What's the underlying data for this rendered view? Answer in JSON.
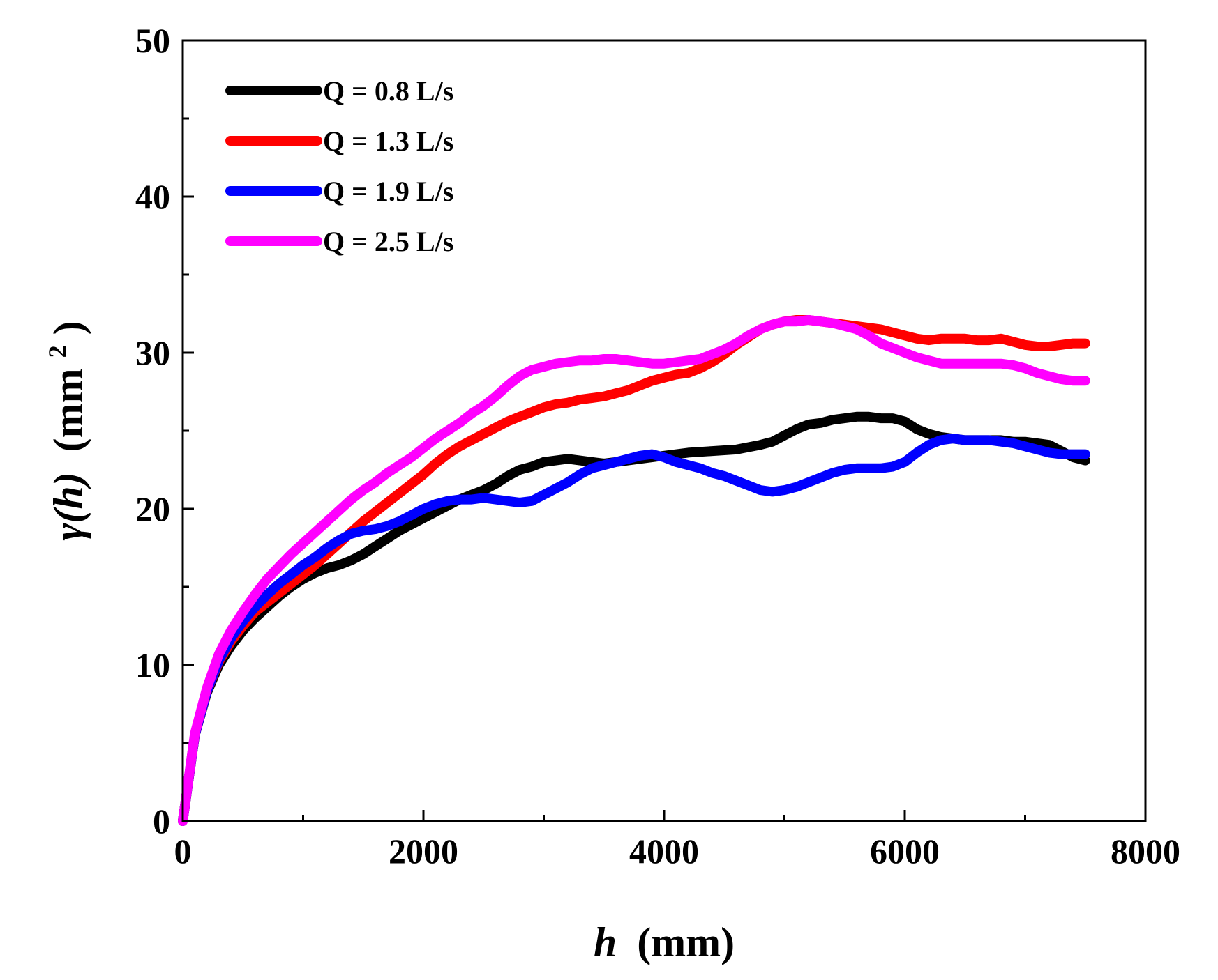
{
  "chart_data": {
    "type": "line",
    "title": "",
    "xlabel": "h",
    "xlabel_unit": "(mm)",
    "ylabel": "γ(h)",
    "ylabel_unit": "(mm",
    "ylabel_sup": "2",
    "ylabel_close": ")",
    "xlim": [
      0,
      8000
    ],
    "ylim": [
      0,
      50
    ],
    "x_ticks": [
      0,
      2000,
      4000,
      6000,
      8000
    ],
    "x_tick_labels": [
      "0",
      "2000",
      "4000",
      "6000",
      "8000"
    ],
    "y_ticks": [
      0,
      10,
      20,
      30,
      40,
      50
    ],
    "y_tick_labels": [
      "0",
      "10",
      "20",
      "30",
      "40",
      "50"
    ],
    "grid": false,
    "legend_position": "top-left",
    "series": [
      {
        "name": "Q = 0.8 L/s",
        "color": "#000000",
        "points": [
          [
            0,
            0
          ],
          [
            100,
            5.5
          ],
          [
            200,
            8.2
          ],
          [
            300,
            10
          ],
          [
            400,
            11.2
          ],
          [
            500,
            12.2
          ],
          [
            600,
            13
          ],
          [
            700,
            13.7
          ],
          [
            800,
            14.4
          ],
          [
            900,
            15
          ],
          [
            1000,
            15.5
          ],
          [
            1100,
            15.9
          ],
          [
            1200,
            16.2
          ],
          [
            1300,
            16.4
          ],
          [
            1400,
            16.7
          ],
          [
            1500,
            17.1
          ],
          [
            1600,
            17.6
          ],
          [
            1700,
            18.1
          ],
          [
            1800,
            18.6
          ],
          [
            1900,
            19
          ],
          [
            2000,
            19.4
          ],
          [
            2100,
            19.8
          ],
          [
            2200,
            20.2
          ],
          [
            2300,
            20.6
          ],
          [
            2400,
            20.9
          ],
          [
            2500,
            21.2
          ],
          [
            2600,
            21.6
          ],
          [
            2700,
            22.1
          ],
          [
            2800,
            22.5
          ],
          [
            2900,
            22.7
          ],
          [
            3000,
            23
          ],
          [
            3100,
            23.1
          ],
          [
            3200,
            23.2
          ],
          [
            3300,
            23.1
          ],
          [
            3400,
            23
          ],
          [
            3500,
            22.9
          ],
          [
            3600,
            23
          ],
          [
            3700,
            23.1
          ],
          [
            3800,
            23.2
          ],
          [
            3900,
            23.3
          ],
          [
            4000,
            23.4
          ],
          [
            4200,
            23.6
          ],
          [
            4400,
            23.7
          ],
          [
            4600,
            23.8
          ],
          [
            4800,
            24.1
          ],
          [
            4900,
            24.3
          ],
          [
            5000,
            24.7
          ],
          [
            5100,
            25.1
          ],
          [
            5200,
            25.4
          ],
          [
            5300,
            25.5
          ],
          [
            5400,
            25.7
          ],
          [
            5500,
            25.8
          ],
          [
            5600,
            25.9
          ],
          [
            5700,
            25.9
          ],
          [
            5800,
            25.8
          ],
          [
            5900,
            25.8
          ],
          [
            6000,
            25.6
          ],
          [
            6100,
            25.1
          ],
          [
            6200,
            24.8
          ],
          [
            6300,
            24.6
          ],
          [
            6400,
            24.5
          ],
          [
            6500,
            24.4
          ],
          [
            6600,
            24.4
          ],
          [
            6700,
            24.4
          ],
          [
            6800,
            24.4
          ],
          [
            6900,
            24.3
          ],
          [
            7000,
            24.3
          ],
          [
            7100,
            24.2
          ],
          [
            7200,
            24.1
          ],
          [
            7300,
            23.7
          ],
          [
            7400,
            23.3
          ],
          [
            7500,
            23.1
          ]
        ]
      },
      {
        "name": "Q = 1.3 L/s",
        "color": "#ff0000",
        "points": [
          [
            0,
            0
          ],
          [
            100,
            5.5
          ],
          [
            200,
            8.3
          ],
          [
            300,
            10.2
          ],
          [
            400,
            11.5
          ],
          [
            500,
            12.5
          ],
          [
            600,
            13.4
          ],
          [
            700,
            14
          ],
          [
            800,
            14.6
          ],
          [
            900,
            15.2
          ],
          [
            1000,
            15.8
          ],
          [
            1100,
            16.4
          ],
          [
            1200,
            17.1
          ],
          [
            1300,
            17.8
          ],
          [
            1400,
            18.5
          ],
          [
            1500,
            19.2
          ],
          [
            1600,
            19.8
          ],
          [
            1700,
            20.4
          ],
          [
            1800,
            21
          ],
          [
            1900,
            21.6
          ],
          [
            2000,
            22.2
          ],
          [
            2100,
            22.9
          ],
          [
            2200,
            23.5
          ],
          [
            2300,
            24
          ],
          [
            2400,
            24.4
          ],
          [
            2500,
            24.8
          ],
          [
            2600,
            25.2
          ],
          [
            2700,
            25.6
          ],
          [
            2800,
            25.9
          ],
          [
            2900,
            26.2
          ],
          [
            3000,
            26.5
          ],
          [
            3100,
            26.7
          ],
          [
            3200,
            26.8
          ],
          [
            3300,
            27
          ],
          [
            3400,
            27.1
          ],
          [
            3500,
            27.2
          ],
          [
            3600,
            27.4
          ],
          [
            3700,
            27.6
          ],
          [
            3800,
            27.9
          ],
          [
            3900,
            28.2
          ],
          [
            4000,
            28.4
          ],
          [
            4100,
            28.6
          ],
          [
            4200,
            28.7
          ],
          [
            4300,
            29
          ],
          [
            4400,
            29.4
          ],
          [
            4500,
            29.9
          ],
          [
            4600,
            30.5
          ],
          [
            4700,
            31
          ],
          [
            4800,
            31.5
          ],
          [
            4900,
            31.8
          ],
          [
            5000,
            32
          ],
          [
            5100,
            32.1
          ],
          [
            5200,
            32.1
          ],
          [
            5300,
            32
          ],
          [
            5400,
            31.9
          ],
          [
            5500,
            31.8
          ],
          [
            5600,
            31.7
          ],
          [
            5700,
            31.6
          ],
          [
            5800,
            31.5
          ],
          [
            5900,
            31.3
          ],
          [
            6000,
            31.1
          ],
          [
            6100,
            30.9
          ],
          [
            6200,
            30.8
          ],
          [
            6300,
            30.9
          ],
          [
            6400,
            30.9
          ],
          [
            6500,
            30.9
          ],
          [
            6600,
            30.8
          ],
          [
            6700,
            30.8
          ],
          [
            6800,
            30.9
          ],
          [
            6900,
            30.7
          ],
          [
            7000,
            30.5
          ],
          [
            7100,
            30.4
          ],
          [
            7200,
            30.4
          ],
          [
            7300,
            30.5
          ],
          [
            7400,
            30.6
          ],
          [
            7500,
            30.6
          ]
        ]
      },
      {
        "name": "Q = 1.9 L/s",
        "color": "#0000ff",
        "points": [
          [
            0,
            0
          ],
          [
            100,
            5.5
          ],
          [
            200,
            8.3
          ],
          [
            300,
            10.3
          ],
          [
            400,
            11.7
          ],
          [
            500,
            12.8
          ],
          [
            600,
            13.7
          ],
          [
            700,
            14.5
          ],
          [
            800,
            15.2
          ],
          [
            900,
            15.8
          ],
          [
            1000,
            16.4
          ],
          [
            1100,
            16.9
          ],
          [
            1200,
            17.5
          ],
          [
            1300,
            18
          ],
          [
            1400,
            18.4
          ],
          [
            1500,
            18.6
          ],
          [
            1600,
            18.7
          ],
          [
            1700,
            18.9
          ],
          [
            1800,
            19.2
          ],
          [
            1900,
            19.6
          ],
          [
            2000,
            20
          ],
          [
            2100,
            20.3
          ],
          [
            2200,
            20.5
          ],
          [
            2300,
            20.6
          ],
          [
            2400,
            20.6
          ],
          [
            2500,
            20.7
          ],
          [
            2600,
            20.6
          ],
          [
            2700,
            20.5
          ],
          [
            2800,
            20.4
          ],
          [
            2900,
            20.5
          ],
          [
            3000,
            20.9
          ],
          [
            3100,
            21.3
          ],
          [
            3200,
            21.7
          ],
          [
            3300,
            22.2
          ],
          [
            3400,
            22.6
          ],
          [
            3500,
            22.8
          ],
          [
            3600,
            23
          ],
          [
            3700,
            23.2
          ],
          [
            3800,
            23.4
          ],
          [
            3900,
            23.5
          ],
          [
            4000,
            23.3
          ],
          [
            4100,
            23
          ],
          [
            4200,
            22.8
          ],
          [
            4300,
            22.6
          ],
          [
            4400,
            22.3
          ],
          [
            4500,
            22.1
          ],
          [
            4600,
            21.8
          ],
          [
            4700,
            21.5
          ],
          [
            4800,
            21.2
          ],
          [
            4900,
            21.1
          ],
          [
            5000,
            21.2
          ],
          [
            5100,
            21.4
          ],
          [
            5200,
            21.7
          ],
          [
            5300,
            22
          ],
          [
            5400,
            22.3
          ],
          [
            5500,
            22.5
          ],
          [
            5600,
            22.6
          ],
          [
            5700,
            22.6
          ],
          [
            5800,
            22.6
          ],
          [
            5900,
            22.7
          ],
          [
            6000,
            23
          ],
          [
            6100,
            23.6
          ],
          [
            6200,
            24.1
          ],
          [
            6300,
            24.4
          ],
          [
            6400,
            24.5
          ],
          [
            6500,
            24.4
          ],
          [
            6600,
            24.4
          ],
          [
            6700,
            24.4
          ],
          [
            6800,
            24.3
          ],
          [
            6900,
            24.2
          ],
          [
            7000,
            24
          ],
          [
            7100,
            23.8
          ],
          [
            7200,
            23.6
          ],
          [
            7300,
            23.5
          ],
          [
            7400,
            23.5
          ],
          [
            7500,
            23.5
          ]
        ]
      },
      {
        "name": "Q = 2.5 L/s",
        "color": "#ff00ff",
        "points": [
          [
            0,
            0
          ],
          [
            100,
            5.6
          ],
          [
            200,
            8.5
          ],
          [
            300,
            10.7
          ],
          [
            400,
            12.2
          ],
          [
            500,
            13.4
          ],
          [
            600,
            14.5
          ],
          [
            700,
            15.5
          ],
          [
            800,
            16.3
          ],
          [
            900,
            17.1
          ],
          [
            1000,
            17.8
          ],
          [
            1100,
            18.5
          ],
          [
            1200,
            19.2
          ],
          [
            1300,
            19.9
          ],
          [
            1400,
            20.6
          ],
          [
            1500,
            21.2
          ],
          [
            1600,
            21.7
          ],
          [
            1700,
            22.3
          ],
          [
            1800,
            22.8
          ],
          [
            1900,
            23.3
          ],
          [
            2000,
            23.9
          ],
          [
            2100,
            24.5
          ],
          [
            2200,
            25
          ],
          [
            2300,
            25.5
          ],
          [
            2400,
            26.1
          ],
          [
            2500,
            26.6
          ],
          [
            2600,
            27.2
          ],
          [
            2700,
            27.9
          ],
          [
            2800,
            28.5
          ],
          [
            2900,
            28.9
          ],
          [
            3000,
            29.1
          ],
          [
            3100,
            29.3
          ],
          [
            3200,
            29.4
          ],
          [
            3300,
            29.5
          ],
          [
            3400,
            29.5
          ],
          [
            3500,
            29.6
          ],
          [
            3600,
            29.6
          ],
          [
            3700,
            29.5
          ],
          [
            3800,
            29.4
          ],
          [
            3900,
            29.3
          ],
          [
            4000,
            29.3
          ],
          [
            4100,
            29.4
          ],
          [
            4200,
            29.5
          ],
          [
            4300,
            29.6
          ],
          [
            4400,
            29.9
          ],
          [
            4500,
            30.2
          ],
          [
            4600,
            30.6
          ],
          [
            4700,
            31.1
          ],
          [
            4800,
            31.5
          ],
          [
            4900,
            31.8
          ],
          [
            5000,
            32
          ],
          [
            5100,
            32
          ],
          [
            5200,
            32.1
          ],
          [
            5300,
            32
          ],
          [
            5400,
            31.9
          ],
          [
            5500,
            31.7
          ],
          [
            5600,
            31.5
          ],
          [
            5700,
            31.1
          ],
          [
            5800,
            30.6
          ],
          [
            5900,
            30.3
          ],
          [
            6000,
            30
          ],
          [
            6100,
            29.7
          ],
          [
            6200,
            29.5
          ],
          [
            6300,
            29.3
          ],
          [
            6400,
            29.3
          ],
          [
            6500,
            29.3
          ],
          [
            6600,
            29.3
          ],
          [
            6700,
            29.3
          ],
          [
            6800,
            29.3
          ],
          [
            6900,
            29.2
          ],
          [
            7000,
            29
          ],
          [
            7100,
            28.7
          ],
          [
            7200,
            28.5
          ],
          [
            7300,
            28.3
          ],
          [
            7400,
            28.2
          ],
          [
            7500,
            28.2
          ]
        ]
      }
    ]
  }
}
